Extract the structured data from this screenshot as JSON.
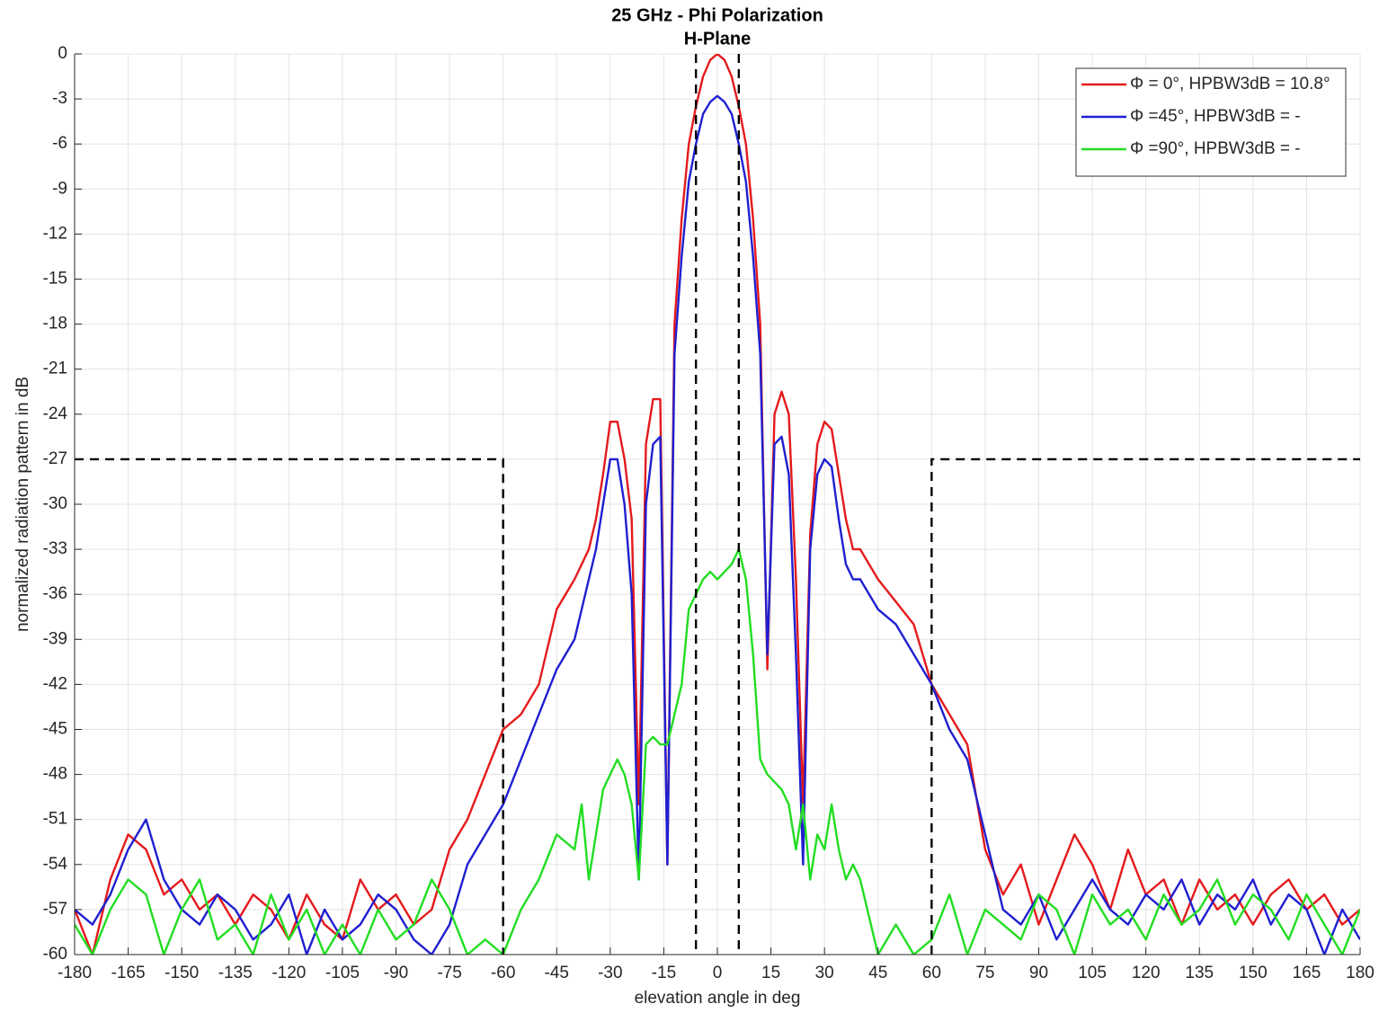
{
  "chart_data": {
    "type": "line",
    "title": "25 GHz - Phi Polarization",
    "subtitle": "H-Plane",
    "xlabel": "elevation angle in deg",
    "ylabel": "normalized radiation pattern in dB",
    "xlim": [
      -180,
      180
    ],
    "ylim": [
      -60,
      0
    ],
    "xticks": [
      -180,
      -165,
      -150,
      -135,
      -120,
      -105,
      -90,
      -75,
      -60,
      -45,
      -30,
      -15,
      0,
      15,
      30,
      45,
      60,
      75,
      90,
      105,
      120,
      135,
      150,
      165,
      180
    ],
    "yticks": [
      -60,
      -57,
      -54,
      -51,
      -48,
      -45,
      -42,
      -39,
      -36,
      -33,
      -30,
      -27,
      -24,
      -21,
      -18,
      -15,
      -12,
      -9,
      -6,
      -3,
      0
    ],
    "grid": true,
    "legend": "upper right",
    "x": [
      -180,
      -175,
      -170,
      -165,
      -160,
      -155,
      -150,
      -145,
      -140,
      -135,
      -130,
      -125,
      -120,
      -115,
      -110,
      -105,
      -100,
      -95,
      -90,
      -85,
      -80,
      -75,
      -70,
      -65,
      -60,
      -55,
      -50,
      -45,
      -40,
      -38,
      -36,
      -34,
      -32,
      -30,
      -28,
      -26,
      -24,
      -22,
      -20,
      -18,
      -16,
      -14,
      -12,
      -10,
      -8,
      -6,
      -4,
      -2,
      0,
      2,
      4,
      6,
      8,
      10,
      12,
      14,
      16,
      18,
      20,
      22,
      24,
      26,
      28,
      30,
      32,
      34,
      36,
      38,
      40,
      45,
      50,
      55,
      60,
      65,
      70,
      75,
      80,
      85,
      90,
      95,
      100,
      105,
      110,
      115,
      120,
      125,
      130,
      135,
      140,
      145,
      150,
      155,
      160,
      165,
      170,
      175,
      180
    ],
    "series": [
      {
        "name": "Φ = 0°, HPBW3dB = 10.8°",
        "color": "#e41a1c",
        "values": [
          -57,
          -60,
          -55,
          -52,
          -53,
          -56,
          -55,
          -57,
          -56,
          -58,
          -56,
          -57,
          -59,
          -56,
          -58,
          -59,
          -55,
          -57,
          -56,
          -58,
          -57,
          -53,
          -51,
          -48,
          -45,
          -44,
          -42,
          -37,
          -35,
          -34,
          -33,
          -31,
          -28,
          -24.5,
          -24.5,
          -27,
          -31,
          -50,
          -26,
          -23,
          -23,
          -54,
          -18,
          -11,
          -6,
          -3.5,
          -1.5,
          -0.4,
          0,
          -0.4,
          -1.5,
          -3.5,
          -6,
          -11,
          -18,
          -41,
          -24,
          -22.5,
          -24,
          -35,
          -50,
          -32,
          -26,
          -24.5,
          -25,
          -28,
          -31,
          -33,
          -33,
          -35,
          -36.5,
          -38,
          -42,
          -44,
          -46,
          -53,
          -56,
          -54,
          -58,
          -55,
          -52,
          -54,
          -57,
          -53,
          -56,
          -55,
          -58,
          -55,
          -57,
          -56,
          -58,
          -56,
          -55,
          -57,
          -56,
          -58,
          -57
        ]
      },
      {
        "name": "Φ =45°, HPBW3dB = -",
        "color": "#1f1fd0",
        "values": [
          -57,
          -58,
          -56,
          -53,
          -51,
          -55,
          -57,
          -58,
          -56,
          -57,
          -59,
          -58,
          -56,
          -60,
          -57,
          -59,
          -58,
          -56,
          -57,
          -59,
          -60,
          -58,
          -54,
          -52,
          -50,
          -47,
          -44,
          -41,
          -39,
          -37,
          -35,
          -33,
          -30,
          -27,
          -27,
          -30,
          -36,
          -55,
          -30,
          -26,
          -25.5,
          -54,
          -20,
          -13.5,
          -8.5,
          -6,
          -4,
          -3.2,
          -2.8,
          -3.2,
          -4,
          -6,
          -8.5,
          -13.5,
          -20,
          -40,
          -26,
          -25.5,
          -28,
          -40,
          -54,
          -33,
          -28,
          -27,
          -27.5,
          -31,
          -34,
          -35,
          -35,
          -37,
          -38,
          -40,
          -42,
          -45,
          -47,
          -52,
          -57,
          -58,
          -56,
          -59,
          -57,
          -55,
          -57,
          -58,
          -56,
          -57,
          -55,
          -58,
          -56,
          -57,
          -55,
          -58,
          -56,
          -57,
          -60,
          -57,
          -59
        ]
      },
      {
        "name": "Φ =90°, HPBW3dB = -",
        "color": "#22dd22",
        "values": [
          -58,
          -60,
          -57,
          -55,
          -56,
          -60,
          -57,
          -55,
          -59,
          -58,
          -60,
          -56,
          -59,
          -57,
          -60,
          -58,
          -60,
          -57,
          -59,
          -58,
          -55,
          -57,
          -60,
          -59,
          -60,
          -57,
          -55,
          -52,
          -53,
          -50,
          -55,
          -52,
          -49,
          -48,
          -47,
          -48,
          -50,
          -55,
          -46,
          -45.5,
          -46,
          -46,
          -44,
          -42,
          -37,
          -36,
          -35,
          -34.5,
          -35,
          -34.5,
          -34,
          -33,
          -35,
          -40,
          -47,
          -48,
          -48.5,
          -49,
          -50,
          -53,
          -50,
          -55,
          -52,
          -53,
          -50,
          -53,
          -55,
          -54,
          -55,
          -60,
          -58,
          -60,
          -59,
          -56,
          -60,
          -57,
          -58,
          -59,
          -56,
          -57,
          -60,
          -56,
          -58,
          -57,
          -59,
          -56,
          -58,
          -57,
          -55,
          -58,
          -56,
          -57,
          -59,
          -56,
          -58,
          -60,
          -57
        ]
      }
    ],
    "mask": {
      "color": "#000000",
      "dashed": true,
      "segments": [
        {
          "x": [
            -180,
            -60,
            -60
          ],
          "values": [
            -27,
            -27,
            -60
          ]
        },
        {
          "x": [
            -6,
            -6
          ],
          "values": [
            0,
            -60
          ]
        },
        {
          "x": [
            6,
            6
          ],
          "values": [
            0,
            -60
          ]
        },
        {
          "x": [
            60,
            60,
            180
          ],
          "values": [
            -60,
            -27,
            -27
          ]
        }
      ]
    }
  }
}
